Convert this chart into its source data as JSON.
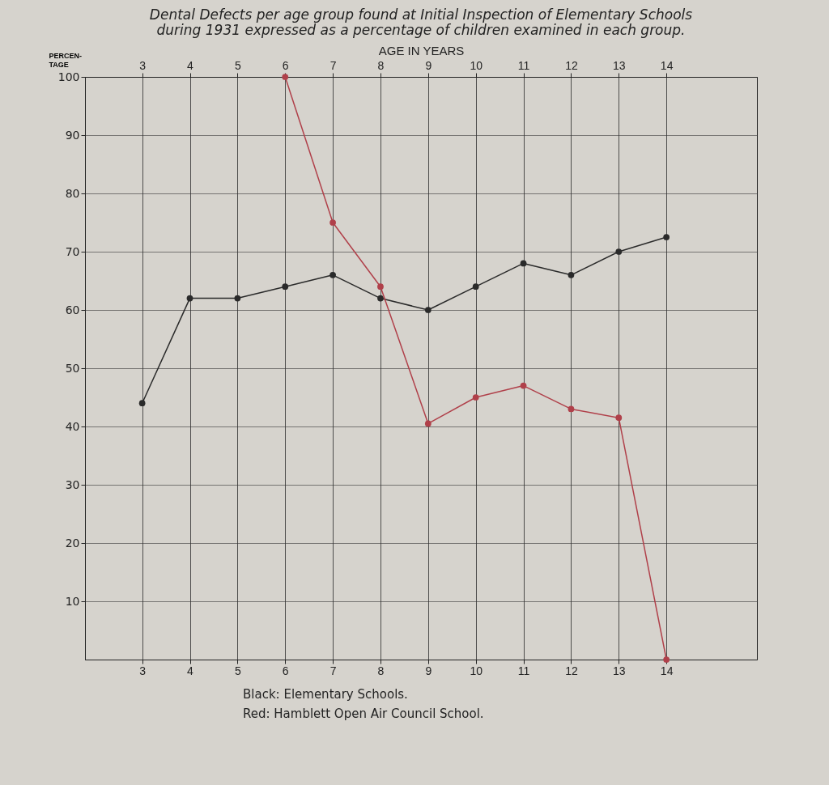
{
  "chart_data": {
    "type": "line",
    "title": "Dental Defects per age group found at Initial Inspection of Elementary Schools during 1931 expressed as a percentage of children examined in each group.",
    "xlabel": null,
    "x2label": "AGE IN YEARS",
    "ylabel": "PERCEN-TAGE",
    "x": [
      3,
      4,
      5,
      6,
      7,
      8,
      9,
      10,
      11,
      12,
      13,
      14
    ],
    "series": [
      {
        "color": "#2a2a2a",
        "values": [
          44,
          62,
          62,
          64,
          66,
          62,
          60,
          64,
          68,
          66,
          70,
          72.5
        ]
      },
      {
        "color": "#b0404a",
        "x": [
          6,
          7,
          8,
          9,
          10,
          11,
          12,
          13,
          14
        ],
        "values": [
          100,
          75,
          64,
          40.5,
          45,
          47,
          43,
          41.5,
          0
        ]
      }
    ],
    "xlim": [
      1.8,
      15.9
    ],
    "xticks": [
      3,
      4,
      5,
      6,
      7,
      8,
      9,
      10,
      11,
      12,
      13,
      14
    ],
    "x2lim": [
      1.8,
      15.9
    ],
    "x2ticks": [
      3,
      4,
      5,
      6,
      7,
      8,
      9,
      10,
      11,
      12,
      13,
      14
    ],
    "ylim": [
      0,
      100
    ],
    "yticks": [
      10,
      20,
      30,
      40,
      50,
      60,
      70,
      80,
      90,
      100
    ],
    "grid": true,
    "marker": "circle",
    "line_style": "solid",
    "annotations": [
      "Black: Elementary Schools.",
      "Red: Hamblett Open Air Council School."
    ]
  }
}
